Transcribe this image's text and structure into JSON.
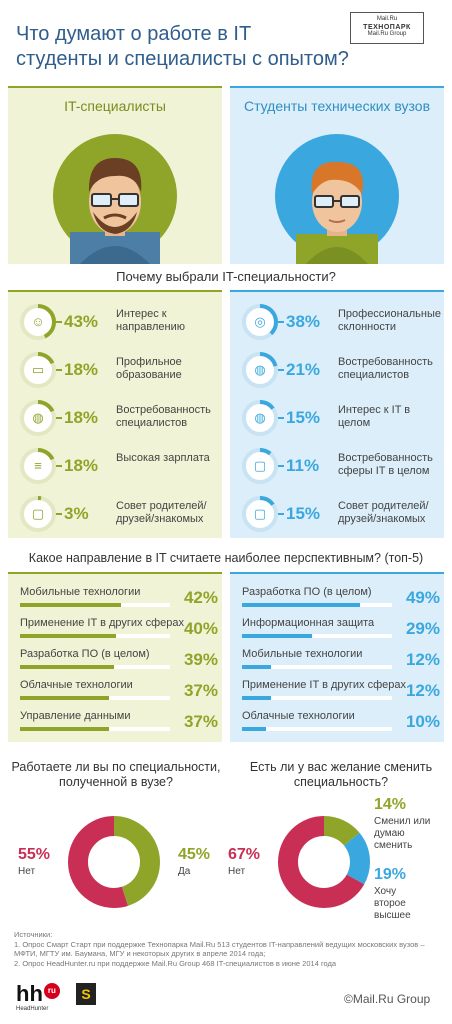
{
  "header": {
    "title_line1": "Что думают о работе в IT",
    "title_line2": "студенты и специалисты с опытом?",
    "logo_top": "Mail.Ru",
    "logo_main": "ТЕХНОПАРК",
    "logo_bottom": "Mail.Ru Group"
  },
  "columns": {
    "left_title": "IT-специалисты",
    "right_title": "Студенты технических вузов"
  },
  "colors": {
    "green": "#8fa52a",
    "blue": "#3aa8df",
    "red": "#c92f55",
    "title_blue": "#2f5d8c"
  },
  "reasons": {
    "title": "Почему выбрали IT-специальности?",
    "left": [
      {
        "pct": "43%",
        "value": 43,
        "label": "Интерес к направлению",
        "icon": "smile-icon"
      },
      {
        "pct": "18%",
        "value": 18,
        "label": "Профильное образование",
        "icon": "book-icon"
      },
      {
        "pct": "18%",
        "value": 18,
        "label": "Востребованность специалистов",
        "icon": "chat-icon"
      },
      {
        "pct": "18%",
        "value": 18,
        "label": "Высокая зарплата",
        "icon": "coins-icon"
      },
      {
        "pct": "3%",
        "value": 3,
        "label": "Совет родителей/ друзей/знакомых",
        "icon": "speech-icon"
      }
    ],
    "right": [
      {
        "pct": "38%",
        "value": 38,
        "label": "Профессиональные склонности",
        "icon": "mouse-icon"
      },
      {
        "pct": "21%",
        "value": 21,
        "label": "Востребованность специалистов",
        "icon": "chat-icon"
      },
      {
        "pct": "15%",
        "value": 15,
        "label": "Интерес к IT в целом",
        "icon": "chat-icon"
      },
      {
        "pct": "11%",
        "value": 11,
        "label": "Востребованность сферы IT в целом",
        "icon": "speech-icon"
      },
      {
        "pct": "15%",
        "value": 15,
        "label": "Совет родителей/ друзей/знакомых",
        "icon": "speech-icon"
      }
    ]
  },
  "directions": {
    "title": "Какое направление в IT считаете наиболее перспективным? (топ-5)",
    "left": [
      {
        "label": "Мобильные технологии",
        "pct": "42%",
        "value": 42
      },
      {
        "label": "Применение IT в других сферах",
        "pct": "40%",
        "value": 40
      },
      {
        "label": "Разработка ПО (в целом)",
        "pct": "39%",
        "value": 39
      },
      {
        "label": "Облачные технологии",
        "pct": "37%",
        "value": 37
      },
      {
        "label": "Управление данными",
        "pct": "37%",
        "value": 37
      }
    ],
    "right": [
      {
        "label": "Разработка ПО (в целом)",
        "pct": "49%",
        "value": 49
      },
      {
        "label": "Информационная защита",
        "pct": "29%",
        "value": 29
      },
      {
        "label": "Мобильные технологии",
        "pct": "12%",
        "value": 12
      },
      {
        "label": "Применение IT в других сферах",
        "pct": "12%",
        "value": 12
      },
      {
        "label": "Облачные технологии",
        "pct": "10%",
        "value": 10
      }
    ]
  },
  "donut_left": {
    "question": "Работаете ли вы по специальности, полученной в вузе?",
    "no_pct": "55%",
    "no_label": "Нет",
    "no_value": 55,
    "yes_pct": "45%",
    "yes_label": "Да",
    "yes_value": 45
  },
  "donut_right": {
    "question": "Есть ли у вас желание сменить специальность?",
    "no_pct": "67%",
    "no_label": "Нет",
    "no_value": 67,
    "a_pct": "14%",
    "a_label": "Сменил или думаю сменить",
    "a_value": 14,
    "b_pct": "19%",
    "b_label": "Хочу второе высшее",
    "b_value": 19
  },
  "sources": {
    "heading": "Источники:",
    "line1": "1. Опрос Смарт Старт при поддержке Технопарка Mail.Ru 513 студентов IT-направлений ведущих московских вузов – МФТИ, МГТУ им. Баумана, МГУ и некоторых других в апреле 2014 года;",
    "line2": "2. Опрос HeadHunter.ru при поддержке Mail.Ru Group 468 IT-специалистов в июне 2014 года"
  },
  "footer": {
    "hh_text": "hh",
    "hh_ru": "ru",
    "hh_sub": "HeadHunter",
    "s_logo": "S",
    "mailru": "©Mail.Ru Group"
  }
}
